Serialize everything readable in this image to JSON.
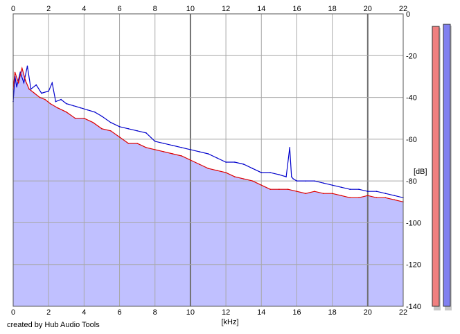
{
  "chart_data": {
    "type": "line",
    "xlabel": "[kHz]",
    "ylabel": "[dB]",
    "xlim": [
      0,
      22
    ],
    "ylim": [
      -140,
      0
    ],
    "x_ticks": [
      "0",
      "2",
      "4",
      "6",
      "8",
      "10",
      "12",
      "14",
      "16",
      "18",
      "20",
      "22"
    ],
    "y_ticks": [
      "0",
      "-20",
      "-40",
      "-60",
      "-80",
      "-100",
      "-120",
      "-140"
    ],
    "grid": true,
    "fill_color": "#c0c0ff",
    "series": [
      {
        "color": "#0000cc",
        "x": [
          0.0,
          0.1,
          0.2,
          0.4,
          0.6,
          0.8,
          1.0,
          1.3,
          1.6,
          2.0,
          2.2,
          2.4,
          2.7,
          3.0,
          3.4,
          3.8,
          4.2,
          4.6,
          5.0,
          5.5,
          6.0,
          6.5,
          7.0,
          7.5,
          8.0,
          8.5,
          9.0,
          9.5,
          10.0,
          10.5,
          11.0,
          11.5,
          12.0,
          12.5,
          13.0,
          13.5,
          14.0,
          14.5,
          15.0,
          15.4,
          15.6,
          15.7,
          15.8,
          16.0,
          16.5,
          17.0,
          17.5,
          18.0,
          18.5,
          19.0,
          19.5,
          20.0,
          20.5,
          21.0,
          21.5,
          22.0
        ],
        "y": [
          -42,
          -30,
          -35,
          -28,
          -33,
          -25,
          -36,
          -34,
          -38,
          -37,
          -33,
          -42,
          -41,
          -43,
          -44,
          -45,
          -46,
          -47,
          -49,
          -52,
          -54,
          -55,
          -56,
          -57,
          -61,
          -62,
          -63,
          -64,
          -65,
          -66,
          -67,
          -69,
          -71,
          -71,
          -72,
          -74,
          -76,
          -76,
          -77,
          -78,
          -64,
          -78,
          -79,
          -80,
          -80,
          -80,
          -81,
          -82,
          -83,
          -84,
          -84,
          -85,
          -85,
          -86,
          -87,
          -88
        ]
      },
      {
        "color": "#dd0000",
        "x": [
          0.0,
          0.1,
          0.3,
          0.5,
          0.7,
          0.9,
          1.2,
          1.5,
          1.8,
          2.1,
          2.5,
          3.0,
          3.5,
          4.0,
          4.5,
          5.0,
          5.5,
          6.0,
          6.5,
          7.0,
          7.5,
          8.0,
          8.5,
          9.0,
          9.5,
          10.0,
          10.5,
          11.0,
          11.5,
          12.0,
          12.5,
          13.0,
          13.5,
          14.0,
          14.5,
          15.0,
          15.5,
          16.0,
          16.5,
          17.0,
          17.5,
          18.0,
          18.5,
          19.0,
          19.5,
          20.0,
          20.5,
          21.0,
          21.5,
          22.0
        ],
        "y": [
          -36,
          -28,
          -33,
          -26,
          -32,
          -36,
          -38,
          -40,
          -41,
          -43,
          -45,
          -47,
          -50,
          -50,
          -52,
          -55,
          -56,
          -59,
          -62,
          -62,
          -64,
          -65,
          -66,
          -67,
          -68,
          -70,
          -72,
          -74,
          -75,
          -76,
          -78,
          -79,
          -80,
          -82,
          -84,
          -84,
          -84,
          -85,
          -86,
          -85,
          -86,
          -86,
          -87,
          -88,
          -88,
          -87,
          -88,
          -88,
          -89,
          -90
        ]
      }
    ],
    "level_meters": [
      {
        "color": "#f08080",
        "top_db": -6
      },
      {
        "color": "#8080f0",
        "top_db": -5
      }
    ]
  },
  "credit": "created by Hub Audio Tools"
}
